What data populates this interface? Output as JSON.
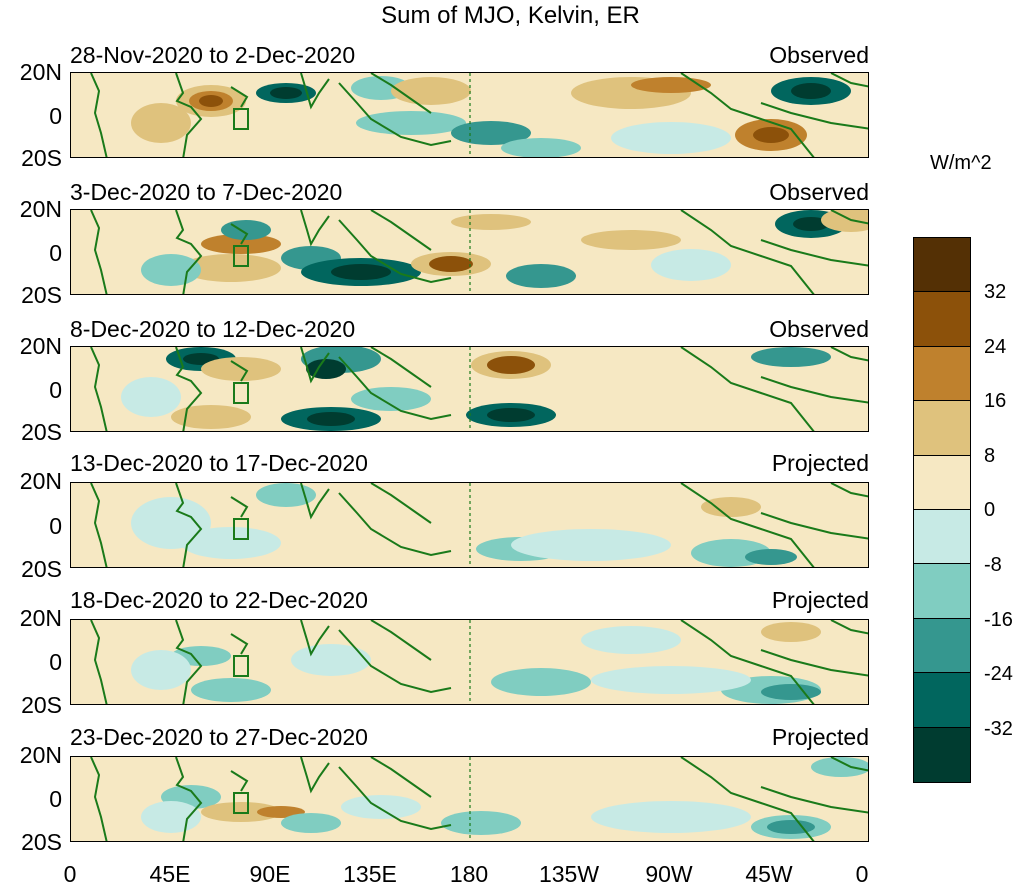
{
  "title": "Sum of MJO, Kelvin, ER",
  "units": "W/m^2",
  "lat_labels": [
    "20N",
    "0",
    "20S"
  ],
  "lon_labels": [
    "0",
    "45E",
    "90E",
    "135E",
    "180",
    "135W",
    "90W",
    "45W",
    "0"
  ],
  "panels": [
    {
      "dates": "28-Nov-2020 to 2-Dec-2020",
      "kind": "Observed"
    },
    {
      "dates": "3-Dec-2020 to 7-Dec-2020",
      "kind": "Observed"
    },
    {
      "dates": "8-Dec-2020 to 12-Dec-2020",
      "kind": "Observed"
    },
    {
      "dates": "13-Dec-2020 to 17-Dec-2020",
      "kind": "Projected"
    },
    {
      "dates": "18-Dec-2020 to 22-Dec-2020",
      "kind": "Projected"
    },
    {
      "dates": "23-Dec-2020 to 27-Dec-2020",
      "kind": "Projected"
    }
  ],
  "colorbar": {
    "labels": [
      "32",
      "24",
      "16",
      "8",
      "0",
      "-8",
      "-16",
      "-24",
      "-32"
    ],
    "colors": [
      "#543005",
      "#8c510a",
      "#bf812d",
      "#dfc27d",
      "#f6e8c3",
      "#c7eae5",
      "#80cdc1",
      "#35978f",
      "#01665e",
      "#003c30"
    ]
  }
}
